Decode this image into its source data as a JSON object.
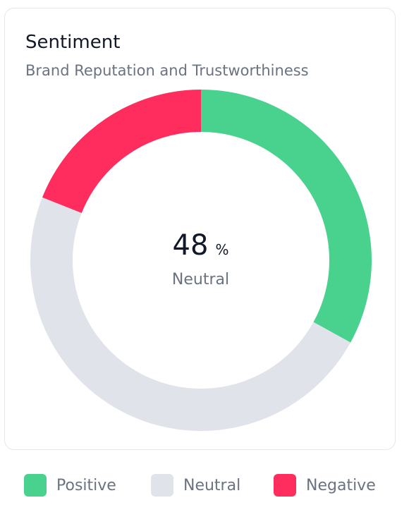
{
  "card": {
    "title": "Sentiment",
    "subtitle": "Brand Reputation and Trustworthiness"
  },
  "center": {
    "value": "48",
    "unit": "%",
    "label": "Neutral"
  },
  "legend": [
    {
      "label": "Positive",
      "color": "#48d28e"
    },
    {
      "label": "Neutral",
      "color": "#e1e3ea"
    },
    {
      "label": "Negative",
      "color": "#ff2d5e"
    }
  ],
  "chart_data": {
    "type": "pie",
    "title": "Sentiment",
    "subtitle": "Brand Reputation and Trustworthiness",
    "categories": [
      "Positive",
      "Neutral",
      "Negative"
    ],
    "values": [
      33,
      48,
      19
    ],
    "colors": [
      "#48d28e",
      "#e1e3ea",
      "#ff2d5e"
    ],
    "legend_placement": "bottom",
    "donut": true
  }
}
